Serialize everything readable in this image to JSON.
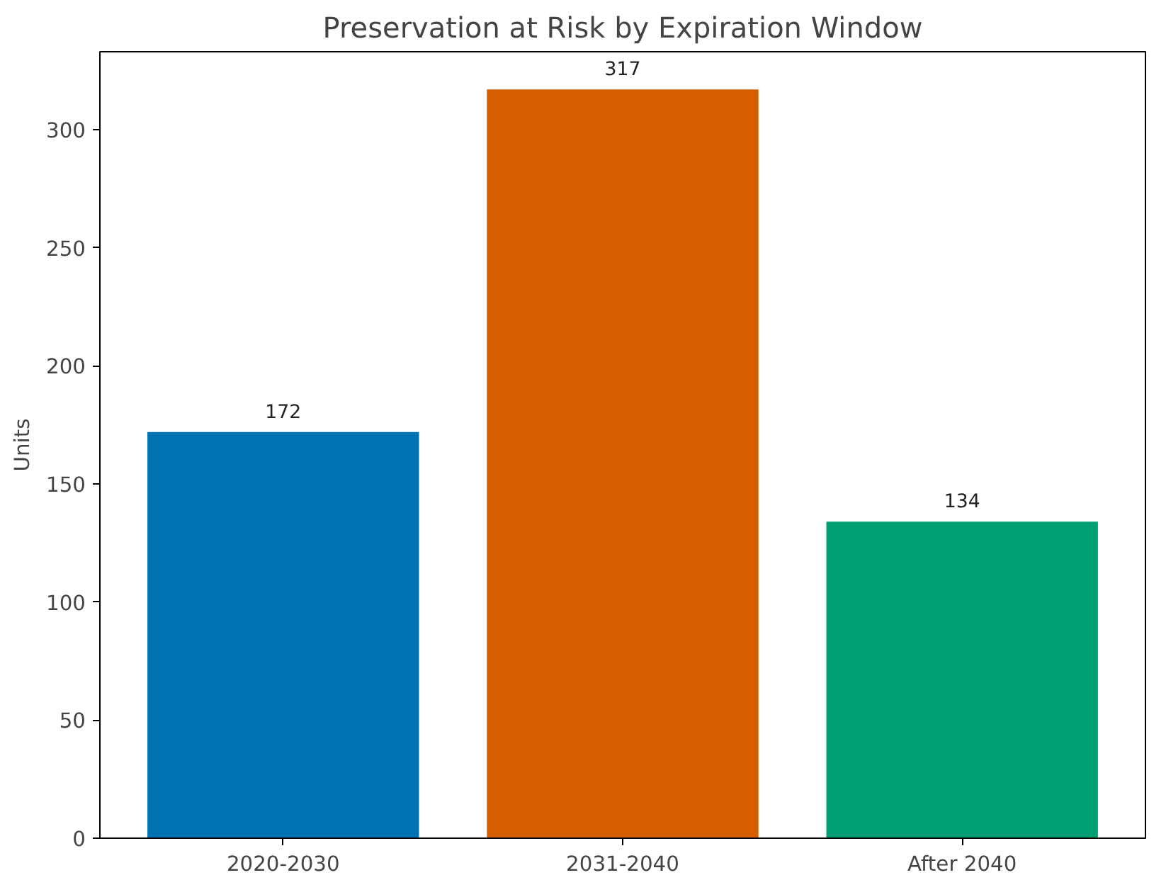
{
  "chart_data": {
    "type": "bar",
    "title": "Preservation at Risk by Expiration Window",
    "ylabel": "Units",
    "categories": [
      "2020-2030",
      "2031-2040",
      "After 2040"
    ],
    "values": [
      172,
      317,
      134
    ],
    "colors": [
      "#0072b2",
      "#d55e00",
      "#009e73"
    ],
    "ylim": [
      0,
      333
    ],
    "yticks": [
      0,
      50,
      100,
      150,
      200,
      250,
      300
    ],
    "data_labels": true,
    "grid": false
  }
}
